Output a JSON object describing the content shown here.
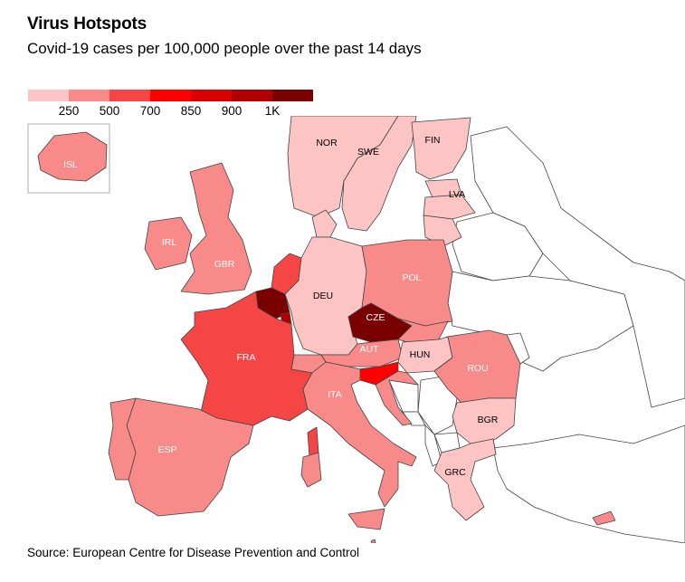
{
  "header": {
    "title": "Virus Hotspots",
    "subtitle": "Covid-19 cases per 100,000 people over the past 14 days"
  },
  "legend": {
    "colors": [
      "#fdc4c4",
      "#f98a8a",
      "#f54545",
      "#ff0000",
      "#d80000",
      "#b00000",
      "#7a0000"
    ],
    "ticks": [
      "250",
      "500",
      "700",
      "850",
      "900",
      "1K"
    ]
  },
  "countries": [
    {
      "code": "ISL",
      "labeled": true,
      "color": "#f98a8a"
    },
    {
      "code": "NOR",
      "labeled": true,
      "color": "#fdc4c4"
    },
    {
      "code": "SWE",
      "labeled": true,
      "color": "#fdc4c4"
    },
    {
      "code": "FIN",
      "labeled": true,
      "color": "#fdc4c4"
    },
    {
      "code": "EST",
      "labeled": false,
      "color": "#fdc4c4"
    },
    {
      "code": "LVA",
      "labeled": true,
      "color": "#fdc4c4"
    },
    {
      "code": "LTU",
      "labeled": false,
      "color": "#fdc4c4"
    },
    {
      "code": "IRL",
      "labeled": true,
      "color": "#f98a8a"
    },
    {
      "code": "GBR",
      "labeled": true,
      "color": "#f98a8a"
    },
    {
      "code": "DNK",
      "labeled": false,
      "color": "#fdc4c4"
    },
    {
      "code": "NLD",
      "labeled": false,
      "color": "#f54545"
    },
    {
      "code": "BEL",
      "labeled": false,
      "color": "#7a0000"
    },
    {
      "code": "LUX",
      "labeled": false,
      "color": "#b00000"
    },
    {
      "code": "DEU",
      "labeled": true,
      "color": "#fdc4c4"
    },
    {
      "code": "POL",
      "labeled": true,
      "color": "#f98a8a"
    },
    {
      "code": "CZE",
      "labeled": true,
      "color": "#7a0000"
    },
    {
      "code": "SVK",
      "labeled": false,
      "color": "#f98a8a"
    },
    {
      "code": "AUT",
      "labeled": true,
      "color": "#f98a8a"
    },
    {
      "code": "CHE",
      "labeled": false,
      "color": "#f98a8a"
    },
    {
      "code": "HUN",
      "labeled": true,
      "color": "#fdc4c4"
    },
    {
      "code": "SVN",
      "labeled": false,
      "color": "#ff0000"
    },
    {
      "code": "HRV",
      "labeled": false,
      "color": "#f98a8a"
    },
    {
      "code": "ROU",
      "labeled": true,
      "color": "#f98a8a"
    },
    {
      "code": "BGR",
      "labeled": true,
      "color": "#fdc4c4"
    },
    {
      "code": "GRC",
      "labeled": true,
      "color": "#fdc4c4"
    },
    {
      "code": "FRA",
      "labeled": true,
      "color": "#f54545"
    },
    {
      "code": "ESP",
      "labeled": true,
      "color": "#f98a8a"
    },
    {
      "code": "PRT",
      "labeled": false,
      "color": "#f98a8a"
    },
    {
      "code": "ITA",
      "labeled": true,
      "color": "#f98a8a"
    },
    {
      "code": "CYP",
      "labeled": false,
      "color": "#f98a8a"
    },
    {
      "code": "MLT",
      "labeled": false,
      "color": "#f98a8a"
    }
  ],
  "footer": {
    "source": "Source: European Centre for Disease Prevention and Control"
  }
}
